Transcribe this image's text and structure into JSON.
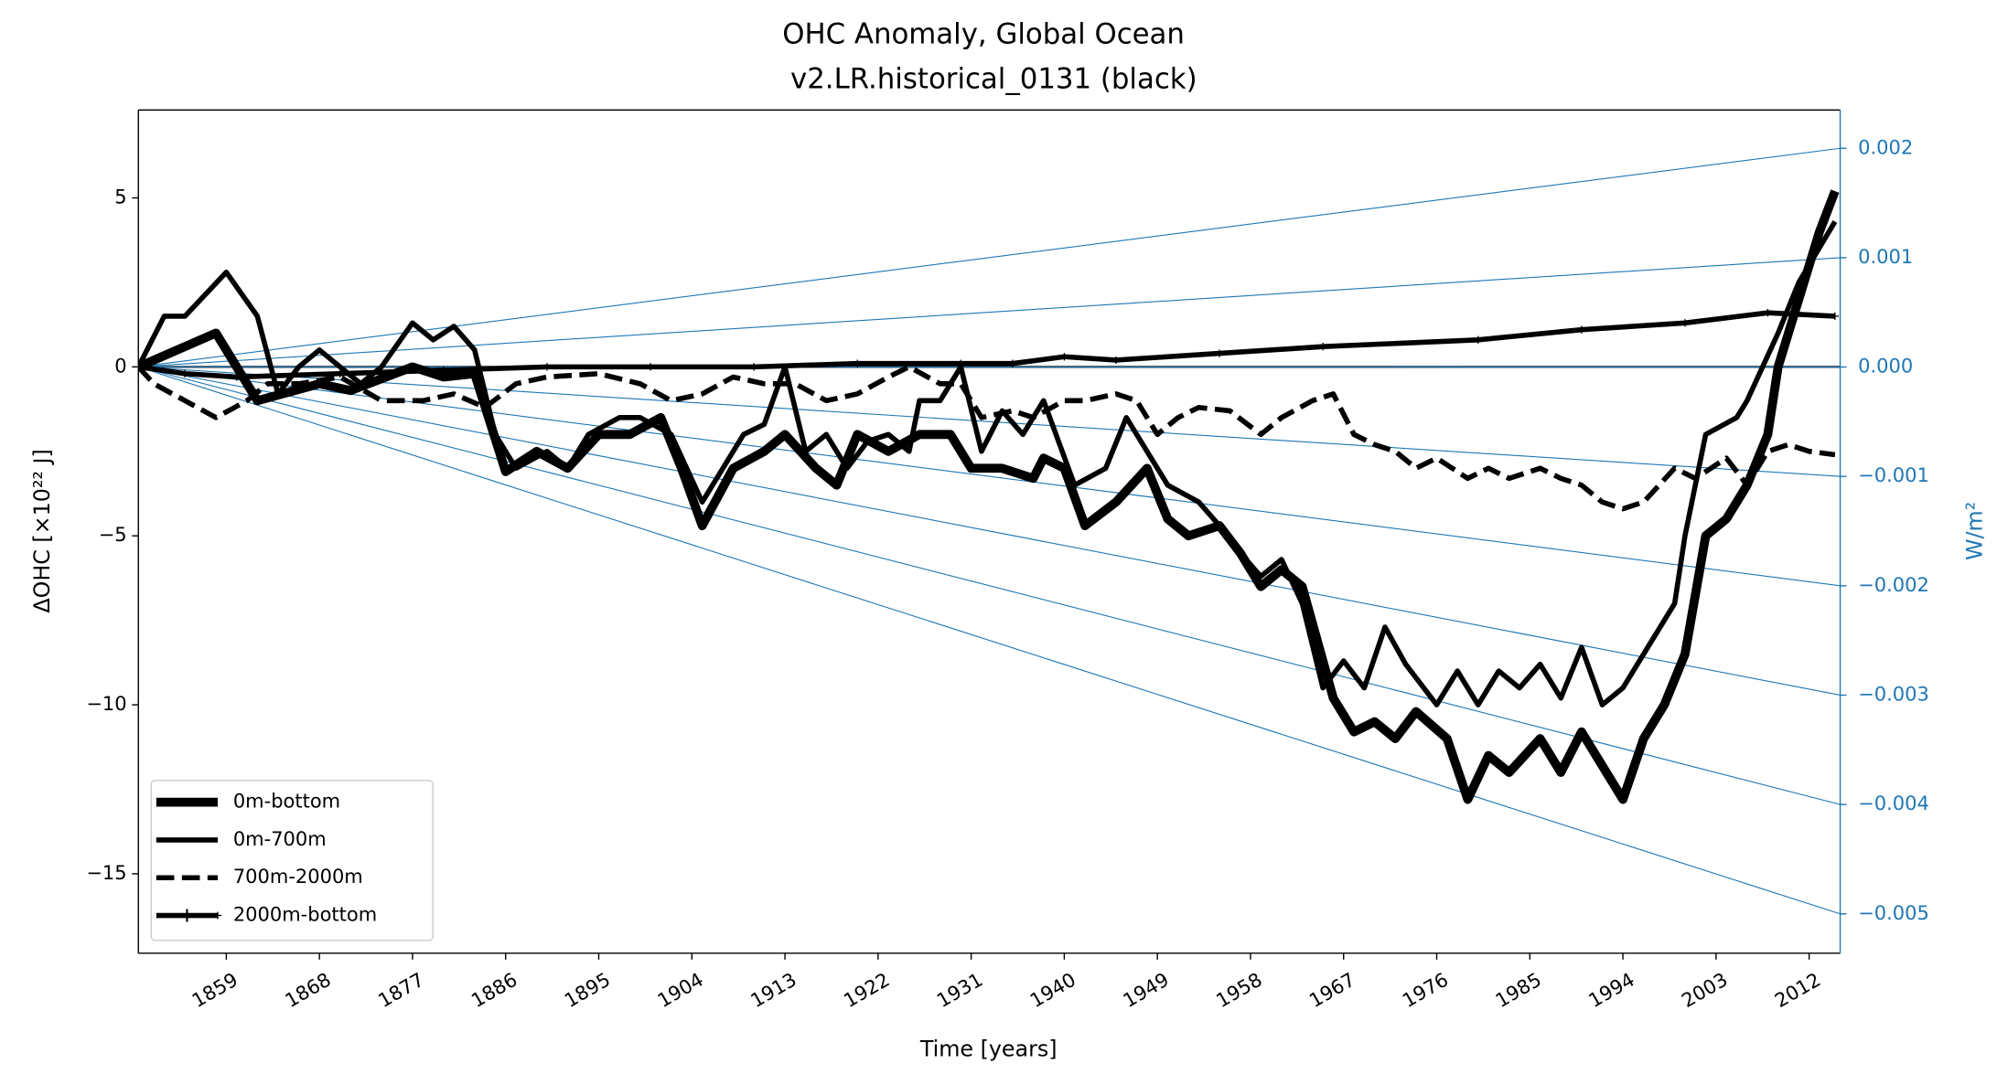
{
  "chart_data": {
    "type": "line",
    "title": "OHC Anomaly, Global Ocean",
    "subtitle": "v2.LR.historical_0131 (black)",
    "xlabel": "Time [years]",
    "ylabel": "ΔOHC [×10²² J]",
    "y2label": "W/m²",
    "xlim": [
      1850.5,
      2015
    ],
    "xticks": [
      1859,
      1868,
      1877,
      1886,
      1895,
      1904,
      1913,
      1922,
      1931,
      1940,
      1949,
      1958,
      1967,
      1976,
      1985,
      1994,
      2003,
      2012
    ],
    "ylim": [
      -17.35,
      7.6
    ],
    "yticks": [
      5,
      0,
      {
        "value": -5,
        "label": "−5"
      },
      {
        "value": -10,
        "label": "−10"
      },
      {
        "value": -15,
        "label": "−15"
      }
    ],
    "y2lim": [
      -0.00536,
      0.00235
    ],
    "y2ticks": [
      0.002,
      0.001,
      {
        "value": 0,
        "label": "0.000"
      },
      {
        "value": -0.001,
        "label": "−0.001"
      },
      {
        "value": -0.002,
        "label": "−0.002"
      },
      {
        "value": -0.003,
        "label": "−0.003"
      },
      {
        "value": -0.004,
        "label": "−0.004"
      },
      {
        "value": -0.005,
        "label": "−0.005"
      }
    ],
    "y2color": "#1f77b4",
    "legend": "lower left",
    "series": [
      {
        "name": "0m-bottom",
        "color": "#000000",
        "linestyle": "solid",
        "x": [
          1850.5,
          1858,
          1862,
          1868,
          1871,
          1877,
          1880,
          1883,
          1886,
          1889,
          1892,
          1895,
          1898,
          1901,
          1903,
          1905,
          1908,
          1911,
          1913,
          1916,
          1918,
          1920,
          1923,
          1926,
          1929,
          1931,
          1934,
          1937,
          1938,
          1940,
          1942,
          1945,
          1948,
          1950,
          1952,
          1955,
          1957,
          1959,
          1961,
          1963,
          1966,
          1968,
          1970,
          1972,
          1974,
          1977,
          1979,
          1981,
          1983,
          1986,
          1988,
          1990,
          1994,
          1996,
          1998,
          2000,
          2002,
          2004,
          2006,
          2008,
          2009,
          2011,
          2013,
          2014.5
        ],
        "values": [
          0,
          1,
          -1,
          -0.5,
          -0.7,
          0,
          -0.3,
          -0.2,
          -3.1,
          -2.5,
          -3,
          -2,
          -2,
          -1.5,
          -3,
          -4.7,
          -3,
          -2.5,
          -2,
          -3,
          -3.5,
          -2,
          -2.5,
          -2,
          -2,
          -3,
          -3,
          -3.3,
          -2.7,
          -3,
          -4.7,
          -4,
          -3,
          -4.5,
          -5,
          -4.7,
          -5.5,
          -6.5,
          -6,
          -6.5,
          -9.8,
          -10.8,
          -10.5,
          -11,
          -10.2,
          -11,
          -12.8,
          -11.5,
          -12,
          -11,
          -12,
          -10.8,
          -12.8,
          -11,
          -10,
          -8.5,
          -5,
          -4.5,
          -3.5,
          -2,
          0,
          2,
          4,
          5.2
        ]
      },
      {
        "name": "0m-700m",
        "color": "#000000",
        "linestyle": "solid",
        "x": [
          1850.5,
          1853,
          1855,
          1859,
          1862,
          1864,
          1866,
          1868,
          1870,
          1872,
          1874,
          1877,
          1879,
          1881,
          1883,
          1885,
          1887,
          1890,
          1892,
          1894,
          1897,
          1899,
          1902,
          1905,
          1907,
          1909,
          1911,
          1913,
          1915,
          1917,
          1919,
          1921,
          1923,
          1925,
          1926,
          1928,
          1930,
          1932,
          1934,
          1936,
          1938,
          1941,
          1944,
          1946,
          1948,
          1950,
          1953,
          1955,
          1957,
          1959,
          1961,
          1963,
          1965,
          1967,
          1969,
          1971,
          1973,
          1976,
          1978,
          1980,
          1982,
          1984,
          1986,
          1988,
          1990,
          1992,
          1994,
          1997,
          1999,
          2000,
          2002,
          2005,
          2006,
          2009,
          2011,
          2014.5
        ],
        "values": [
          0,
          1.5,
          1.5,
          2.8,
          1.5,
          -0.8,
          0,
          0.5,
          0,
          -0.5,
          0,
          1.3,
          0.8,
          1.2,
          0.5,
          -2,
          -3,
          -2.5,
          -3,
          -2,
          -1.5,
          -1.5,
          -2,
          -4,
          -3,
          -2,
          -1.7,
          0,
          -2.5,
          -2,
          -3,
          -2.2,
          -2,
          -2.5,
          -1,
          -1,
          0,
          -2.5,
          -1.3,
          -2,
          -1,
          -3.5,
          -3,
          -1.5,
          -2.5,
          -3.5,
          -4,
          -4.7,
          -5.5,
          -6.2,
          -5.7,
          -7,
          -9.5,
          -8.7,
          -9.5,
          -7.7,
          -8.8,
          -10,
          -9,
          -10,
          -9,
          -9.5,
          -8.8,
          -9.8,
          -8.3,
          -10,
          -9.5,
          -8,
          -7,
          -5,
          -2,
          -1.5,
          -1,
          1,
          2.5,
          4.3
        ]
      },
      {
        "name": "700m-2000m",
        "color": "#000000",
        "linestyle": "dashed",
        "x": [
          1850.5,
          1852,
          1855,
          1858,
          1861,
          1863,
          1866,
          1870,
          1874,
          1878,
          1881,
          1884,
          1887,
          1890,
          1895,
          1899,
          1902,
          1905,
          1908,
          1911,
          1914,
          1917,
          1920,
          1923,
          1925,
          1928,
          1930,
          1932,
          1935,
          1937,
          1940,
          1942,
          1945,
          1947,
          1949,
          1951,
          1953,
          1956,
          1959,
          1961,
          1964,
          1966,
          1968,
          1970,
          1972,
          1974,
          1976,
          1979,
          1981,
          1983,
          1986,
          1988,
          1990,
          1992,
          1994,
          1996,
          1999,
          2001,
          2004,
          2006,
          2008,
          2010,
          2012,
          2014.5
        ],
        "values": [
          0,
          -0.5,
          -1,
          -1.5,
          -1,
          -0.5,
          -0.5,
          -0.3,
          -1,
          -1,
          -0.8,
          -1.2,
          -0.5,
          -0.3,
          -0.2,
          -0.5,
          -1,
          -0.8,
          -0.3,
          -0.5,
          -0.5,
          -1,
          -0.8,
          -0.3,
          0,
          -0.5,
          -0.5,
          -1.5,
          -1.3,
          -1.5,
          -1,
          -1,
          -0.8,
          -1,
          -2,
          -1.5,
          -1.2,
          -1.3,
          -2,
          -1.5,
          -1,
          -0.8,
          -2,
          -2.3,
          -2.5,
          -3,
          -2.7,
          -3.3,
          -3,
          -3.3,
          -3,
          -3.3,
          -3.5,
          -4,
          -4.2,
          -4,
          -3,
          -3.3,
          -2.7,
          -3.5,
          -2.5,
          -2.3,
          -2.5,
          -2.6
        ]
      },
      {
        "name": "2000m-bottom",
        "color": "#000000",
        "linestyle": "plus",
        "x": [
          1850.5,
          1855,
          1860,
          1870,
          1880,
          1890,
          1900,
          1910,
          1920,
          1930,
          1935,
          1940,
          1945,
          1955,
          1965,
          1980,
          1990,
          2000,
          2008,
          2014.5
        ],
        "values": [
          0,
          -0.2,
          -0.3,
          -0.2,
          -0.1,
          0,
          0,
          0,
          0.1,
          0.1,
          0.1,
          0.3,
          0.2,
          0.4,
          0.6,
          0.8,
          1.1,
          1.3,
          1.6,
          1.5
        ]
      }
    ]
  }
}
